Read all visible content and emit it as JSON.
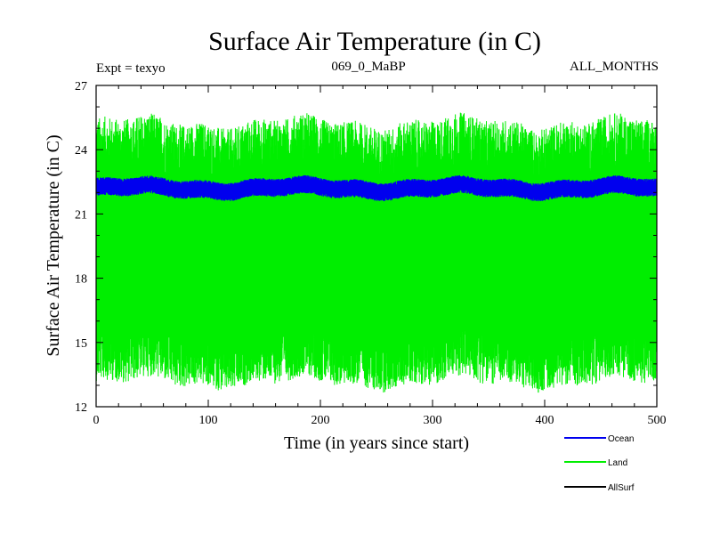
{
  "chart_data": {
    "type": "line",
    "title": "Surface Air Temperature (in C)",
    "subtitle_left": "Expt = texyo",
    "subtitle_center": "069_0_MaBP",
    "subtitle_right": "ALL_MONTHS",
    "xlabel": "Time (in years since start)",
    "ylabel": "Surface Air Temperature (in C)",
    "xlim": [
      0,
      500
    ],
    "ylim": [
      12,
      27
    ],
    "xticks": [
      0,
      100,
      200,
      300,
      400,
      500
    ],
    "yticks": [
      12,
      15,
      18,
      21,
      24,
      27
    ],
    "grid": false,
    "legend_position": "bottom-right",
    "series": [
      {
        "name": "Land",
        "color": "#00ee00",
        "mean": 19.2,
        "range": [
          12.4,
          26.5
        ]
      },
      {
        "name": "Ocean",
        "color": "#0000ee",
        "mean": 22.2,
        "range": [
          21.5,
          22.9
        ]
      },
      {
        "name": "AllSurf",
        "color": "#000000",
        "mean": 22.2,
        "range": [
          21.5,
          22.9
        ]
      }
    ],
    "legend": [
      {
        "name": "Ocean",
        "color": "#0000ee"
      },
      {
        "name": "Land",
        "color": "#00ee00"
      },
      {
        "name": "AllSurf",
        "color": "#000000"
      }
    ]
  }
}
